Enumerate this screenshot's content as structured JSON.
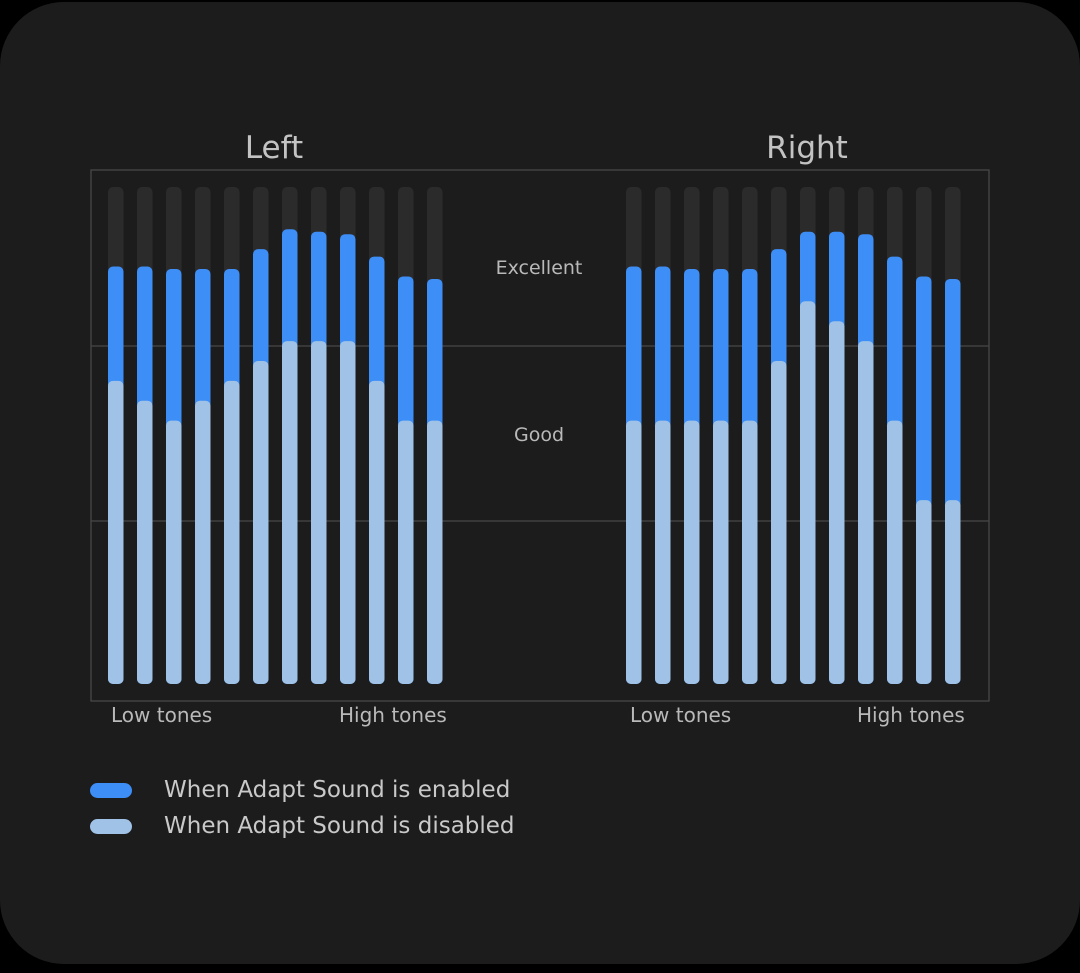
{
  "chart_data": {
    "type": "bar",
    "level_labels": [
      "Excellent",
      "Good"
    ],
    "colors": {
      "enabled": "#3d8ef7",
      "disabled": "#9fc2e6",
      "track": "#2b2b2b",
      "grid": "#474747"
    },
    "ylim": [
      0,
      100
    ],
    "panels": [
      {
        "title": "Left",
        "x_start_label": "Low tones",
        "x_end_label": "High tones",
        "series": [
          {
            "name": "When Adapt Sound is enabled",
            "values": [
              84,
              84,
              83.5,
              83.5,
              83.5,
              87.5,
              91.5,
              91,
              90.5,
              86,
              82,
              81.5
            ]
          },
          {
            "name": "When Adapt Sound is disabled",
            "values": [
              61,
              57,
              53,
              57,
              61,
              65,
              69,
              69,
              69,
              61,
              53,
              53
            ]
          }
        ]
      },
      {
        "title": "Right",
        "x_start_label": "Low tones",
        "x_end_label": "High tones",
        "series": [
          {
            "name": "When Adapt Sound is enabled",
            "values": [
              84,
              84,
              83.5,
              83.5,
              83.5,
              87.5,
              91,
              91,
              90.5,
              86,
              82,
              81.5
            ]
          },
          {
            "name": "When Adapt Sound is disabled",
            "values": [
              53,
              53,
              53,
              53,
              53,
              65,
              77,
              73,
              69,
              53,
              37,
              37
            ]
          }
        ]
      }
    ]
  },
  "legend": [
    {
      "label": "When Adapt Sound is enabled",
      "color": "#3d8ef7"
    },
    {
      "label": "When Adapt Sound is disabled",
      "color": "#9fc2e6"
    }
  ]
}
